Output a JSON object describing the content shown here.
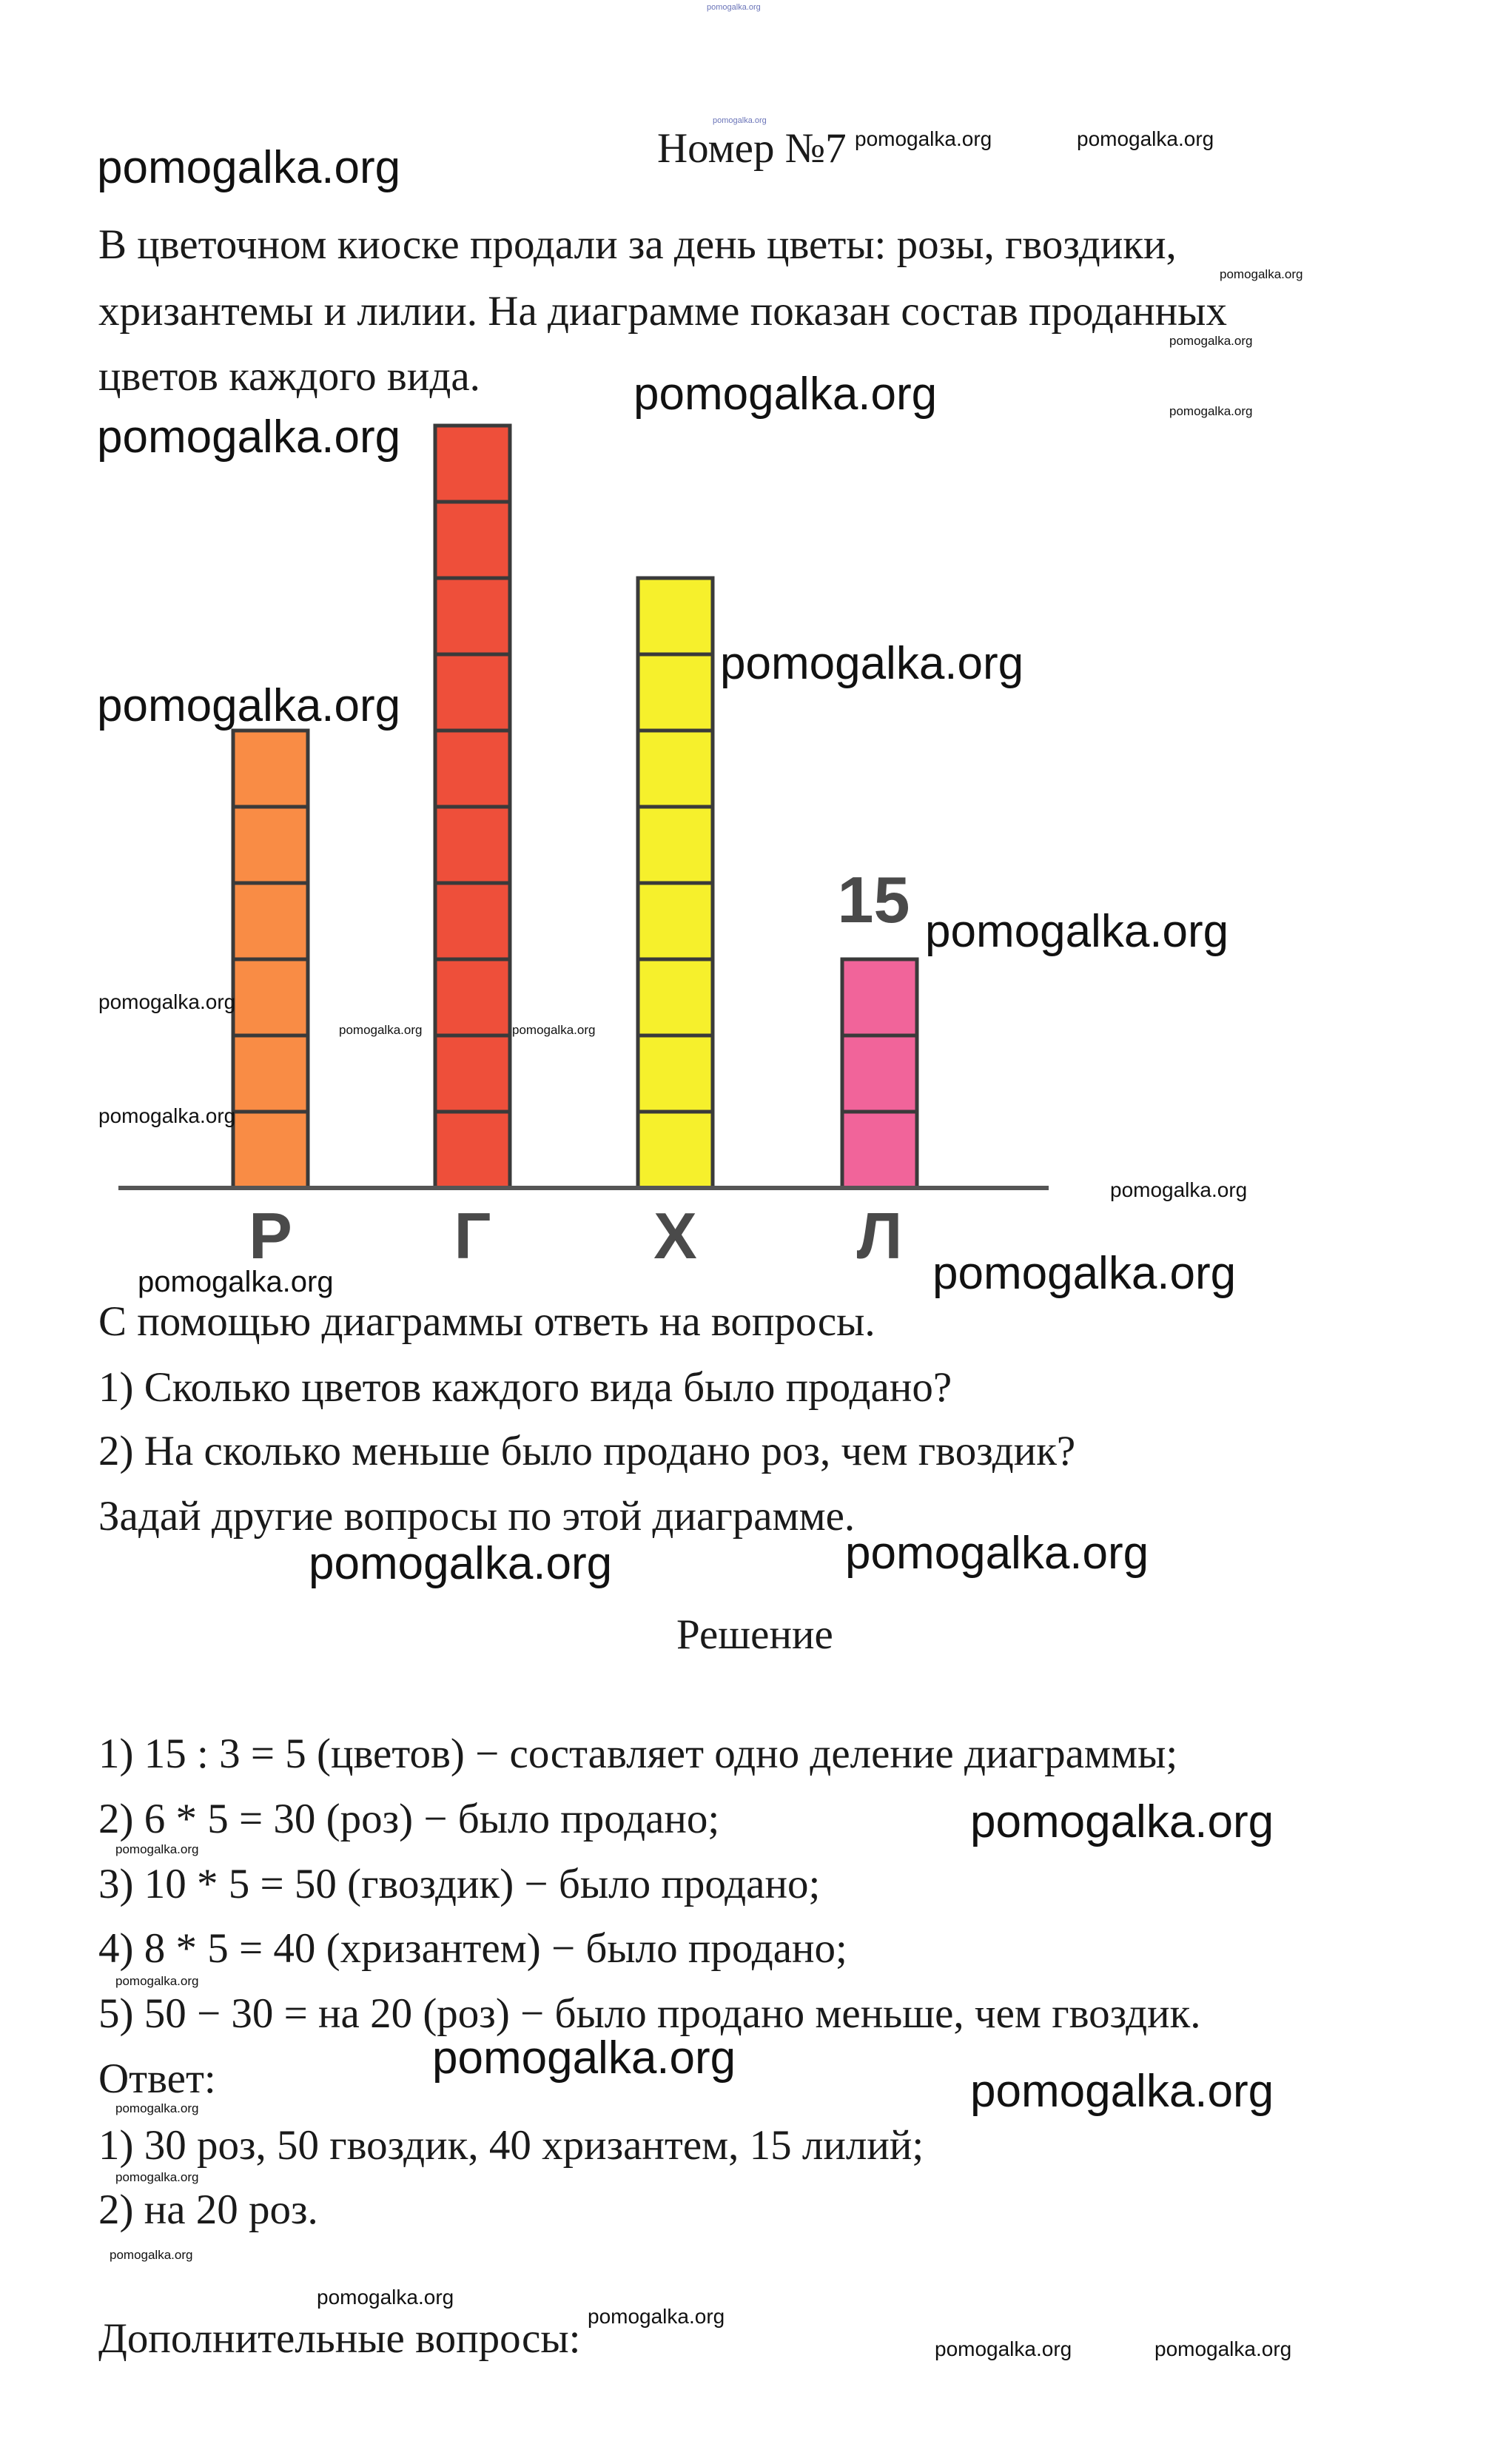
{
  "watermark": "pomogalka.org",
  "title": "Номер №7",
  "problem": [
    "В цветочном киоске продали за день цветы: розы, гвоздики,",
    "хризантемы и лилии. На диаграмме показан состав проданных",
    "цветов каждого вида."
  ],
  "chart_data": {
    "type": "bar",
    "categories": [
      "Р",
      "Г",
      "Х",
      "Л"
    ],
    "values": [
      6,
      10,
      8,
      3
    ],
    "annotations": [
      {
        "category": "Л",
        "text": "15"
      }
    ],
    "colors": [
      "#f98c45",
      "#ee4f3a",
      "#f6f02c",
      "#f1649a"
    ],
    "cell_border_color": "#3a3a3a",
    "grid": false
  },
  "questions": [
    "С помощью диаграммы ответь на вопросы.",
    "1) Сколько цветов каждого вида было продано?",
    "2) На сколько меньше было продано роз, чем гвоздик?",
    "Задай другие вопросы по этой диаграмме."
  ],
  "solution_heading": "Решение",
  "solution": [
    "1) 15 : 3 = 5 (цветов) − составляет одно деление диаграммы;",
    "2) 6 * 5 = 30 (роз) − было продано;",
    "3) 10 * 5 = 50 (гвоздик) − было продано;",
    "4) 8 * 5 = 40 (хризантем) − было продано;",
    "5) 50 − 30 = на 20 (роз) − было продано меньше, чем гвоздик.",
    "Ответ:",
    "1) 30 роз, 50 гвоздик, 40 хризантем, 15 лилий;",
    "2) на 20 роз."
  ],
  "extra_heading": "Дополнительные вопросы:"
}
